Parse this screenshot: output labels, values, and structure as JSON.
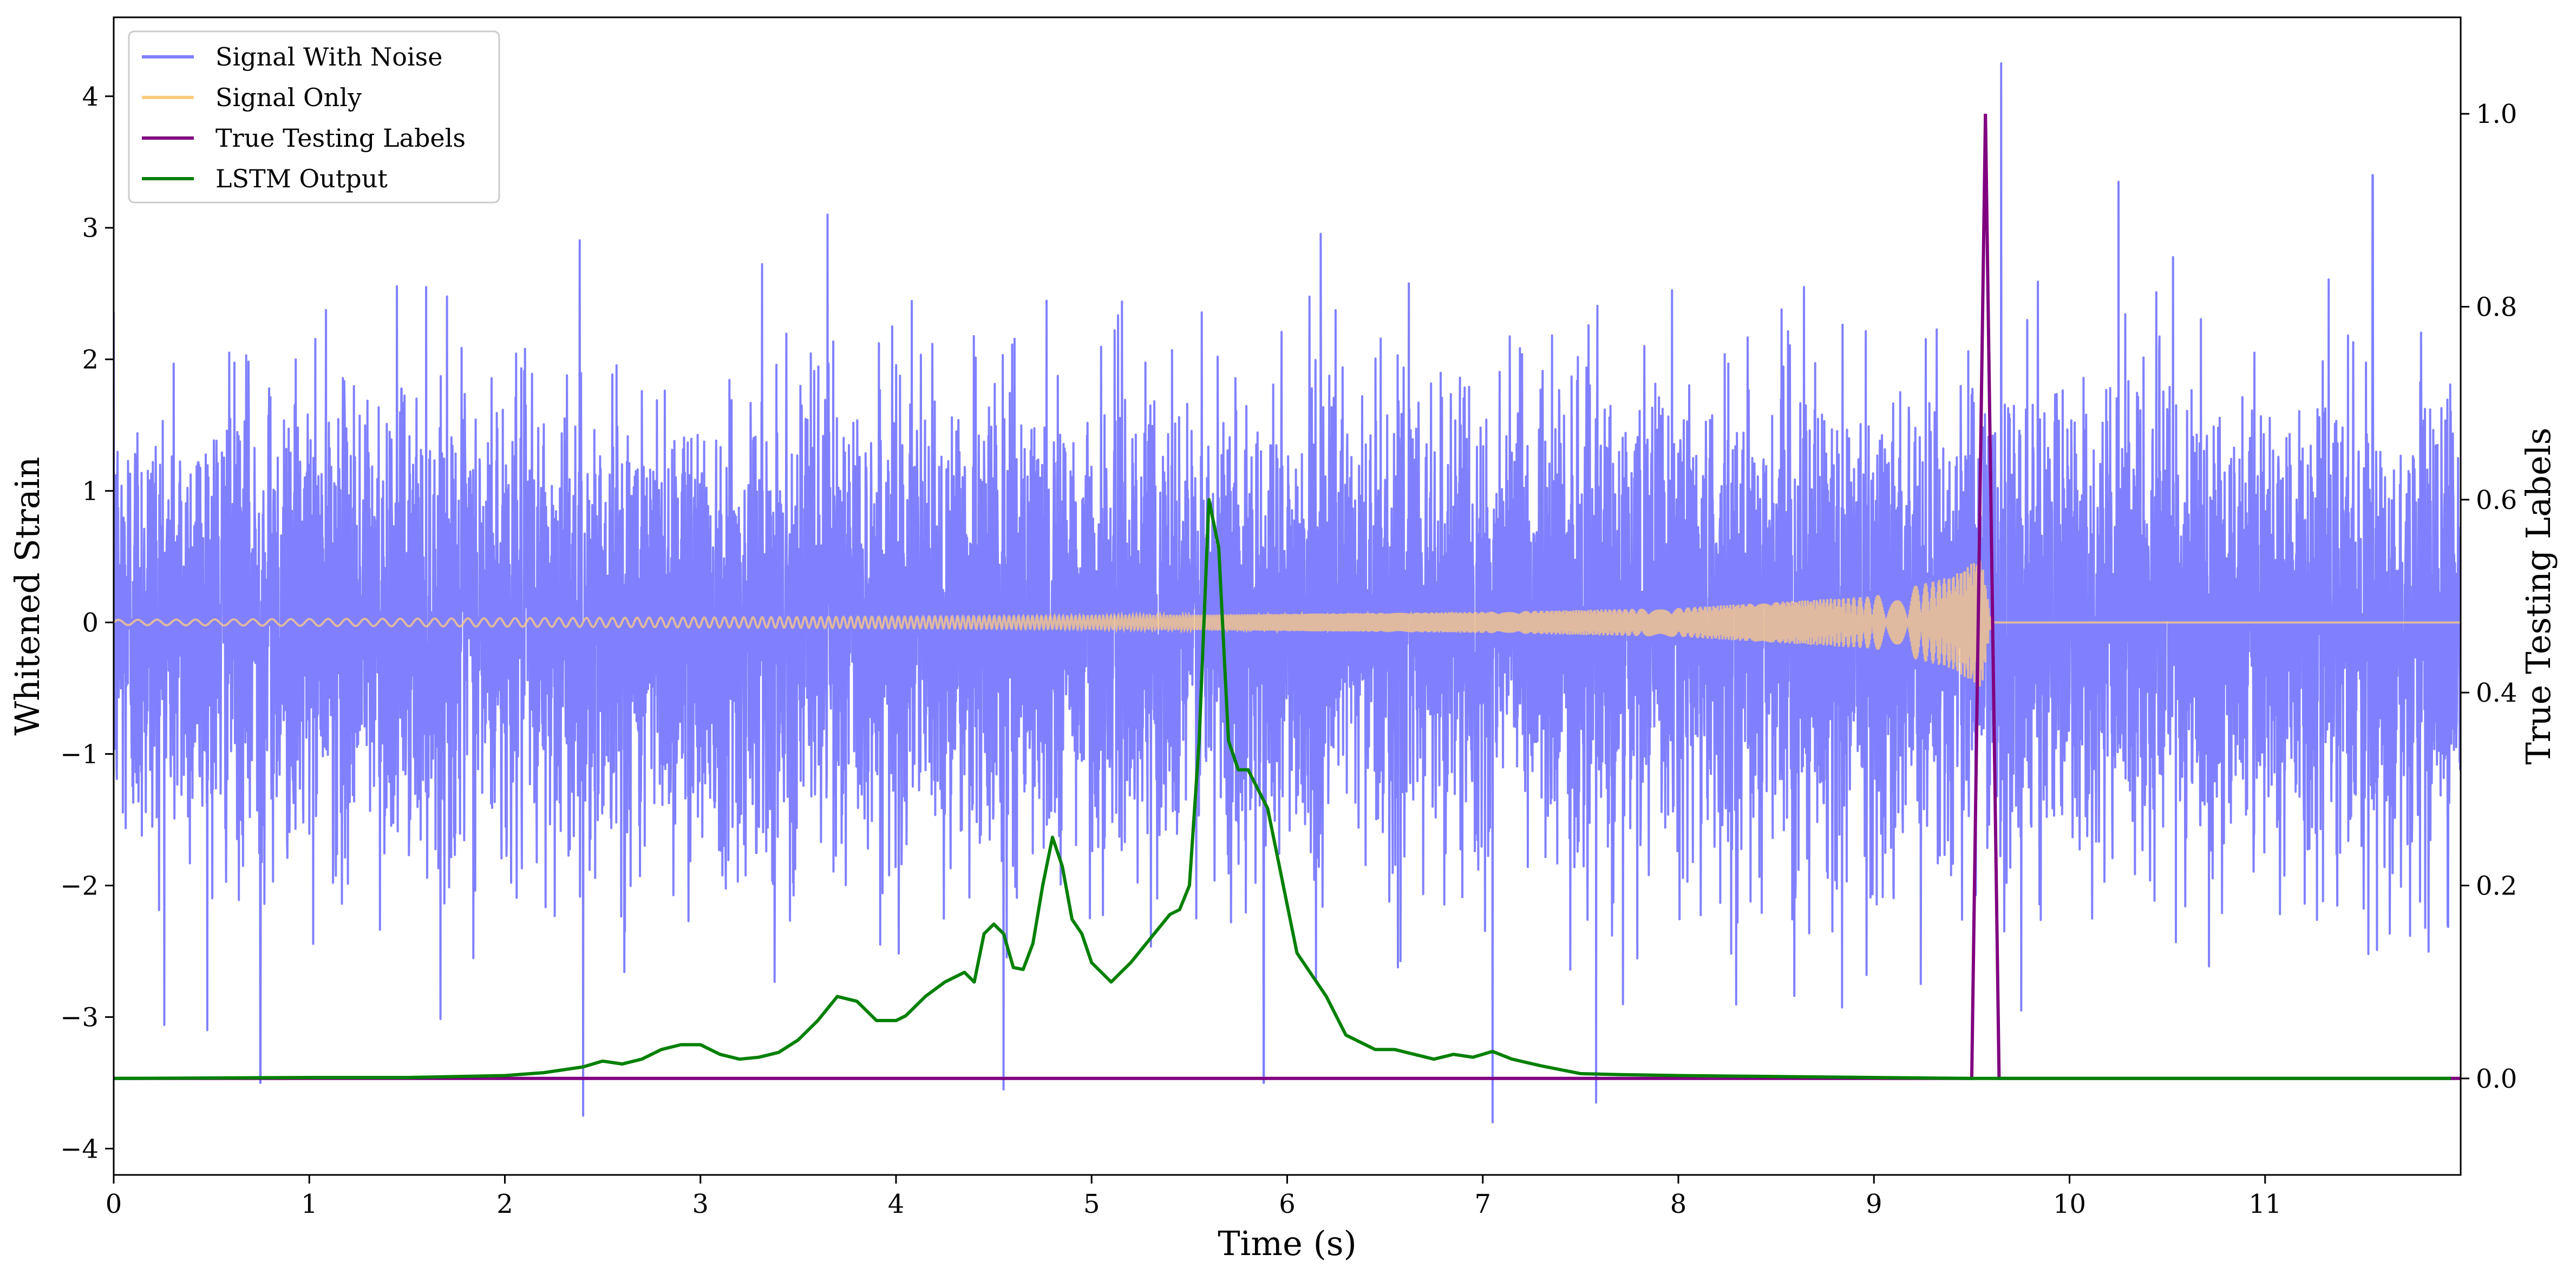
{
  "chart_data": {
    "type": "line",
    "xlabel": "Time (s)",
    "ylabel": "Whitened Strain",
    "y2label": "True Testing Labels",
    "xlim": [
      0,
      12
    ],
    "ylim": [
      -4.2,
      4.6
    ],
    "y2lim": [
      -0.1,
      1.1
    ],
    "x_ticks": [
      0,
      1,
      2,
      3,
      4,
      5,
      6,
      7,
      8,
      9,
      10,
      11
    ],
    "x_tick_labels": [
      "0",
      "1",
      "2",
      "3",
      "4",
      "5",
      "6",
      "7",
      "8",
      "9",
      "10",
      "11"
    ],
    "y_ticks": [
      -4,
      -3,
      -2,
      -1,
      0,
      1,
      2,
      3,
      4
    ],
    "y_tick_labels": [
      "−4",
      "−3",
      "−2",
      "−1",
      "0",
      "1",
      "2",
      "3",
      "4"
    ],
    "y2_ticks": [
      0.0,
      0.2,
      0.4,
      0.6,
      0.8,
      1.0
    ],
    "y2_tick_labels": [
      "0.0",
      "0.2",
      "0.4",
      "0.6",
      "0.8",
      "1.0"
    ],
    "grid": false,
    "legend_position": "top-left",
    "series": [
      {
        "name": "Signal With Noise",
        "axis": "left",
        "color": "#8080ff",
        "description_values": "dense noise, typical amplitude about ±1.5, occasional spikes to ±3.5; max about 4.25 near t=9.65",
        "notable_peaks": [
          {
            "x": 0.75,
            "y": -3.5
          },
          {
            "x": 2.4,
            "y": -3.75
          },
          {
            "x": 3.65,
            "y": 3.1
          },
          {
            "x": 4.55,
            "y": -3.55
          },
          {
            "x": 5.88,
            "y": -3.5
          },
          {
            "x": 7.05,
            "y": -3.8
          },
          {
            "x": 7.58,
            "y": -3.65
          },
          {
            "x": 9.65,
            "y": 4.25
          },
          {
            "x": 10.25,
            "y": 3.35
          },
          {
            "x": 11.55,
            "y": 3.4
          }
        ]
      },
      {
        "name": "Signal Only",
        "axis": "left",
        "color": "#ffcc80",
        "description_values": "chirp signal growing from amplitude about 0.02 at t=0 to about 0.5 at t≈9.55, then zero",
        "envelope": [
          {
            "x": 0,
            "amp": 0.02
          },
          {
            "x": 5.0,
            "amp": 0.05
          },
          {
            "x": 7.0,
            "amp": 0.08
          },
          {
            "x": 8.0,
            "amp": 0.11
          },
          {
            "x": 9.0,
            "amp": 0.2
          },
          {
            "x": 9.4,
            "amp": 0.35
          },
          {
            "x": 9.55,
            "amp": 0.5
          },
          {
            "x": 9.6,
            "amp": 0.0
          },
          {
            "x": 12.0,
            "amp": 0.0
          }
        ]
      },
      {
        "name": "True Testing Labels",
        "axis": "right",
        "color": "#800080",
        "x": [
          0,
          9.5,
          9.57,
          9.64,
          12.0
        ],
        "values": [
          0.0,
          0.0,
          1.0,
          0.0,
          0.0
        ]
      },
      {
        "name": "LSTM Output",
        "axis": "right",
        "color": "#008000",
        "x": [
          0,
          1.0,
          1.5,
          2.0,
          2.2,
          2.4,
          2.5,
          2.6,
          2.7,
          2.8,
          2.9,
          3.0,
          3.1,
          3.2,
          3.3,
          3.4,
          3.5,
          3.6,
          3.7,
          3.8,
          3.9,
          4.0,
          4.05,
          4.15,
          4.25,
          4.35,
          4.4,
          4.45,
          4.5,
          4.55,
          4.6,
          4.65,
          4.7,
          4.75,
          4.8,
          4.85,
          4.9,
          4.95,
          5.0,
          5.05,
          5.1,
          5.15,
          5.2,
          5.3,
          5.4,
          5.45,
          5.5,
          5.55,
          5.6,
          5.65,
          5.7,
          5.75,
          5.8,
          5.85,
          5.9,
          6.0,
          6.05,
          6.2,
          6.3,
          6.45,
          6.55,
          6.65,
          6.75,
          6.85,
          6.95,
          7.05,
          7.15,
          7.3,
          7.5,
          7.7,
          8.0,
          8.5,
          9.0,
          9.5,
          11.95
        ],
        "values": [
          0.0,
          0.001,
          0.001,
          0.003,
          0.006,
          0.012,
          0.018,
          0.015,
          0.02,
          0.03,
          0.035,
          0.035,
          0.025,
          0.02,
          0.022,
          0.027,
          0.04,
          0.06,
          0.085,
          0.08,
          0.06,
          0.06,
          0.065,
          0.085,
          0.1,
          0.11,
          0.1,
          0.15,
          0.16,
          0.15,
          0.115,
          0.113,
          0.14,
          0.2,
          0.25,
          0.22,
          0.165,
          0.15,
          0.12,
          0.11,
          0.1,
          0.11,
          0.12,
          0.145,
          0.17,
          0.175,
          0.2,
          0.35,
          0.6,
          0.55,
          0.35,
          0.32,
          0.32,
          0.3,
          0.28,
          0.18,
          0.13,
          0.085,
          0.045,
          0.03,
          0.03,
          0.025,
          0.02,
          0.025,
          0.022,
          0.028,
          0.02,
          0.013,
          0.005,
          0.004,
          0.003,
          0.002,
          0.001,
          0.0,
          0.0
        ]
      }
    ]
  }
}
